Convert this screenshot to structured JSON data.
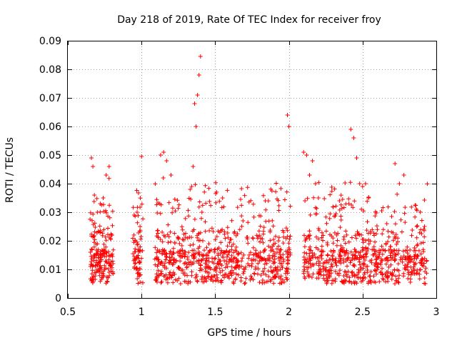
{
  "chart_data": {
    "type": "scatter",
    "title": "Day 218 of 2019, Rate Of TEC Index for receiver froy",
    "xlabel": "GPS time / hours",
    "ylabel": "ROTI / TECUs",
    "xlim": [
      0.5,
      3
    ],
    "ylim": [
      0,
      0.09
    ],
    "grid": true,
    "x_ticks": [
      0.5,
      1,
      1.5,
      2,
      2.5,
      3
    ],
    "x_tick_labels": [
      "0.5",
      "1",
      "1.5",
      "2",
      "2.5",
      "3"
    ],
    "y_ticks": [
      0,
      0.01,
      0.02,
      0.03,
      0.04,
      0.05,
      0.06,
      0.07,
      0.08,
      0.09
    ],
    "y_tick_labels": [
      "0",
      "0.01",
      "0.02",
      "0.03",
      "0.04",
      "0.05",
      "0.06",
      "0.07",
      "0.08",
      "0.09"
    ],
    "marker": "+",
    "color": "#ff0000",
    "clusters": [
      {
        "x_start": 0.65,
        "x_end": 0.81,
        "n": 180
      },
      {
        "x_start": 0.94,
        "x_end": 1.01,
        "n": 70
      },
      {
        "x_start": 1.09,
        "x_end": 2.01,
        "n": 700
      },
      {
        "x_start": 2.1,
        "x_end": 2.94,
        "n": 650
      }
    ],
    "series": [
      {
        "name": "ROTI",
        "x": [
          0.66,
          0.67,
          0.68,
          0.7,
          0.72,
          0.74,
          0.76,
          0.78,
          0.8,
          0.95,
          0.97,
          0.99,
          1.0,
          1.13,
          1.15,
          1.17,
          1.2,
          1.33,
          1.34,
          1.35,
          1.36,
          1.37,
          1.38,
          1.39,
          1.4,
          1.41,
          1.55,
          1.84,
          1.99,
          2.0,
          2.1,
          2.12,
          2.14,
          2.16,
          2.18,
          2.2,
          2.42,
          2.44,
          2.46,
          2.48,
          2.5,
          2.52,
          2.54,
          2.72,
          2.75,
          2.78,
          2.92
        ],
        "y": [
          0.049,
          0.046,
          0.036,
          0.03,
          0.033,
          0.035,
          0.043,
          0.046,
          0.022,
          0.029,
          0.03,
          0.025,
          0.0495,
          0.05,
          0.051,
          0.048,
          0.043,
          0.038,
          0.039,
          0.046,
          0.068,
          0.06,
          0.071,
          0.078,
          0.0845,
          0.03,
          0.035,
          0.034,
          0.064,
          0.06,
          0.051,
          0.05,
          0.043,
          0.048,
          0.04,
          0.035,
          0.059,
          0.056,
          0.049,
          0.04,
          0.039,
          0.04,
          0.035,
          0.047,
          0.04,
          0.043,
          0.025
        ]
      }
    ]
  }
}
